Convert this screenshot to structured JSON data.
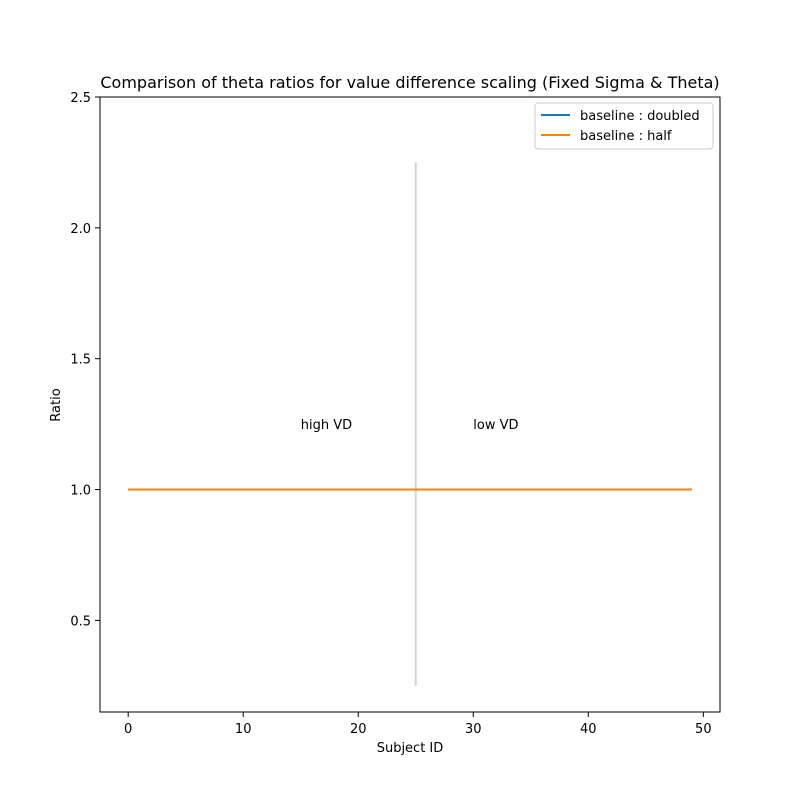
{
  "chart_data": {
    "type": "line",
    "title": "Comparison of theta ratios for value difference scaling (Fixed Sigma & Theta)",
    "xlabel": "Subject ID",
    "ylabel": "Ratio",
    "xlim": [
      -2.45,
      51.45
    ],
    "ylim": [
      0.15,
      2.5
    ],
    "xticks": [
      0,
      10,
      20,
      30,
      40,
      50
    ],
    "yticks": [
      0.5,
      1.0,
      1.5,
      2.0,
      2.5
    ],
    "xtick_labels": [
      "0",
      "10",
      "20",
      "30",
      "40",
      "50"
    ],
    "ytick_labels": [
      "0.5",
      "1.0",
      "1.5",
      "2.0",
      "2.5"
    ],
    "grid": false,
    "legend_position": "top-right",
    "series": [
      {
        "name": "baseline : doubled",
        "color": "#1f77b4",
        "x": [
          0,
          49
        ],
        "y": [
          1.0,
          1.0
        ]
      },
      {
        "name": "baseline : half",
        "color": "#ff7f0e",
        "x": [
          0,
          49
        ],
        "y": [
          1.0,
          1.0
        ]
      }
    ],
    "vline": {
      "x": 25,
      "ymin": 0.25,
      "ymax": 2.25,
      "color": "#d3d3d3"
    },
    "annotations": [
      {
        "text": "high VD",
        "x": 15,
        "y": 1.25
      },
      {
        "text": "low VD",
        "x": 30,
        "y": 1.25
      }
    ]
  }
}
